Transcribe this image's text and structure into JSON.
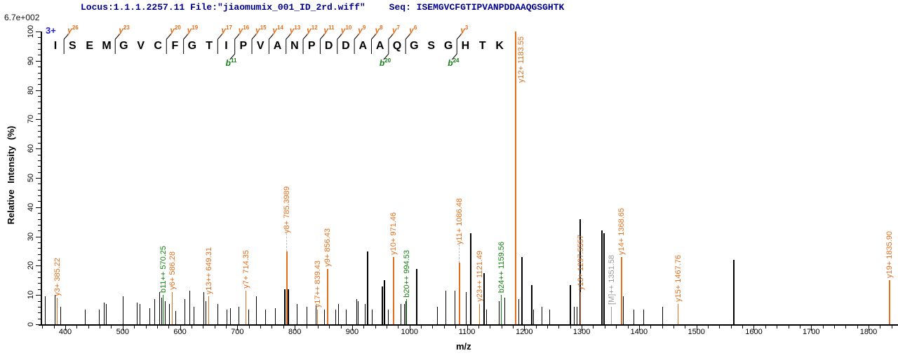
{
  "header": {
    "locus": "Locus:1.1.1.2257.11 File:\"jiaomumix_001_ID_2rd.wiff\"",
    "seq": "Seq: ISEMGVCFGTIPVANPDDAAQGSGHTK"
  },
  "scale_note": "6.7e+002",
  "precursor_charge": "3+",
  "colors": {
    "header_text": "#00008B",
    "charge_text": "#1f1fcc",
    "y_ion": "#e0701f",
    "b_ion": "#158015",
    "precursor_ion": "#9a9a9a",
    "peak_default": "#000000"
  },
  "chart_data": {
    "type": "bar",
    "subtype": "ms2-stick-spectrum",
    "title": "",
    "xlabel": "m/z",
    "ylabel": "Relative Intensity (%)",
    "x_axis": {
      "min": 357,
      "max": 1851,
      "major_ticks": [
        400,
        500,
        600,
        700,
        800,
        900,
        1000,
        1100,
        1200,
        1300,
        1400,
        1500,
        1600,
        1700,
        1800
      ],
      "minor_step": 20
    },
    "y_axis": {
      "min": 0,
      "max": 100,
      "major_ticks": [
        0,
        10,
        20,
        30,
        40,
        50,
        60,
        70,
        80,
        90,
        100
      ],
      "minor_step": 2
    },
    "peptide": {
      "sequence": "ISEMGVCFGTIPVANPDDAAQGSGHTK",
      "residues": [
        "I",
        "S",
        "E",
        "M",
        "G",
        "V",
        "C",
        "F",
        "G",
        "T",
        "I",
        "P",
        "V",
        "A",
        "N",
        "P",
        "D",
        "D",
        "A",
        "A",
        "Q",
        "G",
        "S",
        "G",
        "H",
        "T",
        "K"
      ],
      "boundaries": [
        {
          "after": 1,
          "y": "26"
        },
        {
          "after": 4,
          "y": "23"
        },
        {
          "after": 7,
          "y": "20"
        },
        {
          "after": 8,
          "y": "19"
        },
        {
          "after": 10,
          "y": "17"
        },
        {
          "after": 11,
          "y": "16",
          "b": "11"
        },
        {
          "after": 12,
          "y": "15"
        },
        {
          "after": 13,
          "y": "14"
        },
        {
          "after": 14,
          "y": "13"
        },
        {
          "after": 15,
          "y": "12"
        },
        {
          "after": 16,
          "y": "11"
        },
        {
          "after": 17,
          "y": "10"
        },
        {
          "after": 18,
          "y": "9"
        },
        {
          "after": 19,
          "y": "8"
        },
        {
          "after": 20,
          "y": "7",
          "b": "20"
        },
        {
          "after": 21,
          "y": "6"
        },
        {
          "after": 24,
          "y": "3",
          "b": "24"
        }
      ]
    },
    "peaks": [
      {
        "mz": 365,
        "pct": 9.5
      },
      {
        "mz": 382,
        "pct": 10
      },
      {
        "mz": 385.22,
        "pct": 9,
        "ion": "y",
        "label": "y3+ 385.22"
      },
      {
        "mz": 392,
        "pct": 6
      },
      {
        "mz": 434,
        "pct": 5
      },
      {
        "mz": 459,
        "pct": 5
      },
      {
        "mz": 467,
        "pct": 7.5
      },
      {
        "mz": 471,
        "pct": 7
      },
      {
        "mz": 500,
        "pct": 9.5
      },
      {
        "mz": 525,
        "pct": 7.5
      },
      {
        "mz": 529,
        "pct": 7
      },
      {
        "mz": 547,
        "pct": 5.5
      },
      {
        "mz": 555,
        "pct": 8.5
      },
      {
        "mz": 564,
        "pct": 11
      },
      {
        "mz": 567,
        "pct": 9
      },
      {
        "mz": 570.25,
        "pct": 10,
        "ion": "b",
        "label": "b11++ 570.25"
      },
      {
        "mz": 574,
        "pct": 8
      },
      {
        "mz": 581,
        "pct": 7
      },
      {
        "mz": 586.28,
        "pct": 11,
        "ion": "y",
        "label": "y6+ 586.28"
      },
      {
        "mz": 592,
        "pct": 4.5
      },
      {
        "mz": 608,
        "pct": 8.5
      },
      {
        "mz": 616,
        "pct": 11.5
      },
      {
        "mz": 624,
        "pct": 6
      },
      {
        "mz": 641,
        "pct": 11
      },
      {
        "mz": 645,
        "pct": 8
      },
      {
        "mz": 649.31,
        "pct": 9.5,
        "ion": "y",
        "label": "y13++ 649.31"
      },
      {
        "mz": 665,
        "pct": 7
      },
      {
        "mz": 681,
        "pct": 5
      },
      {
        "mz": 687,
        "pct": 5.5
      },
      {
        "mz": 702,
        "pct": 6
      },
      {
        "mz": 714.35,
        "pct": 11.5,
        "ion": "y",
        "label": "y7+ 714.35"
      },
      {
        "mz": 719,
        "pct": 5
      },
      {
        "mz": 733,
        "pct": 9.5
      },
      {
        "mz": 748,
        "pct": 5
      },
      {
        "mz": 766,
        "pct": 5.5
      },
      {
        "mz": 781,
        "pct": 12
      },
      {
        "mz": 785.3989,
        "pct": 25,
        "ion": "y",
        "label": "y8+ 785.3989",
        "dash": true
      },
      {
        "mz": 788,
        "pct": 12
      },
      {
        "mz": 803,
        "pct": 7
      },
      {
        "mz": 821,
        "pct": 6
      },
      {
        "mz": 836,
        "pct": 6.5
      },
      {
        "mz": 839.43,
        "pct": 5,
        "ion": "y",
        "label": "y17++ 839.43"
      },
      {
        "mz": 851,
        "pct": 5
      },
      {
        "mz": 856.43,
        "pct": 19,
        "ion": "y",
        "label": "y9+ 856.43"
      },
      {
        "mz": 871,
        "pct": 5
      },
      {
        "mz": 875,
        "pct": 7
      },
      {
        "mz": 889,
        "pct": 5
      },
      {
        "mz": 907,
        "pct": 8.5
      },
      {
        "mz": 910,
        "pct": 8
      },
      {
        "mz": 922,
        "pct": 7
      },
      {
        "mz": 926,
        "pct": 25
      },
      {
        "mz": 934,
        "pct": 5
      },
      {
        "mz": 951,
        "pct": 13
      },
      {
        "mz": 955,
        "pct": 15
      },
      {
        "mz": 963,
        "pct": 5
      },
      {
        "mz": 971.46,
        "pct": 23,
        "ion": "y",
        "label": "y10+ 971.46"
      },
      {
        "mz": 985,
        "pct": 7
      },
      {
        "mz": 991,
        "pct": 7
      },
      {
        "mz": 993,
        "pct": 8
      },
      {
        "mz": 994.53,
        "pct": 8.5,
        "ion": "b",
        "label": "b20++ 994.53"
      },
      {
        "mz": 1011,
        "pct": 19
      },
      {
        "mz": 1048,
        "pct": 6
      },
      {
        "mz": 1063,
        "pct": 11.5
      },
      {
        "mz": 1078,
        "pct": 11.5
      },
      {
        "mz": 1086.48,
        "pct": 21,
        "ion": "y",
        "label": "y11+ 1086.48",
        "dash": true
      },
      {
        "mz": 1098,
        "pct": 11
      },
      {
        "mz": 1105,
        "pct": 31
      },
      {
        "mz": 1121.49,
        "pct": 7,
        "ion": "y",
        "label": "y23++ 1121.49"
      },
      {
        "mz": 1129,
        "pct": 17.5
      },
      {
        "mz": 1133,
        "pct": 5
      },
      {
        "mz": 1155,
        "pct": 8
      },
      {
        "mz": 1159.56,
        "pct": 10,
        "ion": "b",
        "label": "b24++ 1159.56"
      },
      {
        "mz": 1165,
        "pct": 9
      },
      {
        "mz": 1183.55,
        "pct": 100,
        "ion": "y",
        "label": "y12+ 1183.55"
      },
      {
        "mz": 1190,
        "pct": 8.5
      },
      {
        "mz": 1195,
        "pct": 23
      },
      {
        "mz": 1212,
        "pct": 13.5
      },
      {
        "mz": 1216,
        "pct": 5
      },
      {
        "mz": 1230,
        "pct": 6
      },
      {
        "mz": 1244,
        "pct": 5
      },
      {
        "mz": 1279,
        "pct": 13.5
      },
      {
        "mz": 1287,
        "pct": 6
      },
      {
        "mz": 1291,
        "pct": 6
      },
      {
        "mz": 1296,
        "pct": 36
      },
      {
        "mz": 1297.5557,
        "pct": 11,
        "ion": "y",
        "label": "y13+ 1297.5557"
      },
      {
        "mz": 1334,
        "pct": 32
      },
      {
        "mz": 1338,
        "pct": 31
      },
      {
        "mz": 1351.58,
        "pct": 6,
        "ion": "M",
        "label": "[M]++ 1351.58"
      },
      {
        "mz": 1368.65,
        "pct": 23,
        "ion": "y",
        "label": "y14+ 1368.65"
      },
      {
        "mz": 1372,
        "pct": 9.5
      },
      {
        "mz": 1390,
        "pct": 5
      },
      {
        "mz": 1408,
        "pct": 5
      },
      {
        "mz": 1441,
        "pct": 6
      },
      {
        "mz": 1467.76,
        "pct": 7,
        "ion": "y",
        "label": "y15+ 1467.76"
      },
      {
        "mz": 1564,
        "pct": 22
      },
      {
        "mz": 1835.9,
        "pct": 15,
        "ion": "y",
        "label": "y19+ 1835.90"
      }
    ]
  }
}
